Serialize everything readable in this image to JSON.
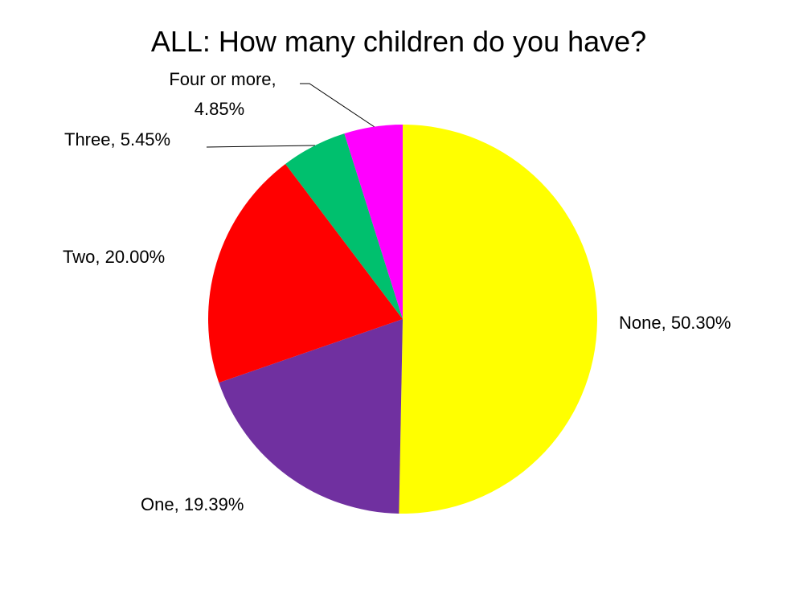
{
  "chart_data": {
    "type": "pie",
    "title": "ALL:  How many children do you have?",
    "categories": [
      "None",
      "One",
      "Two",
      "Three",
      "Four or more"
    ],
    "values": [
      50.3,
      19.39,
      20.0,
      5.45,
      4.85
    ],
    "value_labels": [
      "50.30%",
      "19.39%",
      "20.00%",
      "5.45%",
      "4.85%"
    ],
    "colors": [
      "#ffff00",
      "#7030a0",
      "#ff0000",
      "#00c06e",
      "#ff00ff"
    ]
  }
}
